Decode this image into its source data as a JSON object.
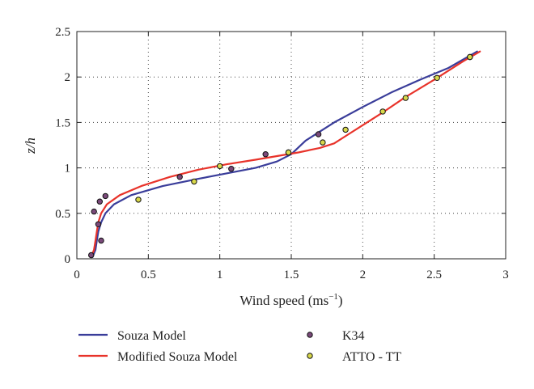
{
  "chart_data": {
    "type": "line",
    "title": "",
    "xlabel": "Wind speed (ms",
    "xlabel_sup": "−1",
    "xlabel_close": ")",
    "ylabel": "z/h",
    "xlim": [
      0,
      3
    ],
    "ylim": [
      0,
      2.5
    ],
    "x_ticks": [
      "0",
      "0.5",
      "1",
      "1.5",
      "2",
      "2.5",
      "3"
    ],
    "y_ticks": [
      "0",
      "0.5",
      "1",
      "1.5",
      "2",
      "2.5"
    ],
    "grid": true,
    "legend_position": "below",
    "series": [
      {
        "name": "Souza Model",
        "type": "line",
        "color": "#3a3d9a",
        "points": [
          [
            0.11,
            0.02
          ],
          [
            0.13,
            0.1
          ],
          [
            0.14,
            0.2
          ],
          [
            0.15,
            0.3
          ],
          [
            0.17,
            0.4
          ],
          [
            0.2,
            0.5
          ],
          [
            0.26,
            0.6
          ],
          [
            0.38,
            0.7
          ],
          [
            0.6,
            0.8
          ],
          [
            0.85,
            0.88
          ],
          [
            1.05,
            0.94
          ],
          [
            1.25,
            1.0
          ],
          [
            1.4,
            1.07
          ],
          [
            1.5,
            1.15
          ],
          [
            1.6,
            1.3
          ],
          [
            1.8,
            1.5
          ],
          [
            2.0,
            1.67
          ],
          [
            2.2,
            1.83
          ],
          [
            2.4,
            1.97
          ],
          [
            2.6,
            2.1
          ],
          [
            2.8,
            2.28
          ]
        ]
      },
      {
        "name": "Modified Souza Model",
        "type": "line",
        "color": "#e8332a",
        "points": [
          [
            0.1,
            0.02
          ],
          [
            0.12,
            0.1
          ],
          [
            0.13,
            0.2
          ],
          [
            0.14,
            0.3
          ],
          [
            0.15,
            0.4
          ],
          [
            0.17,
            0.5
          ],
          [
            0.21,
            0.6
          ],
          [
            0.3,
            0.7
          ],
          [
            0.45,
            0.8
          ],
          [
            0.65,
            0.9
          ],
          [
            0.85,
            0.98
          ],
          [
            1.05,
            1.04
          ],
          [
            1.25,
            1.09
          ],
          [
            1.4,
            1.13
          ],
          [
            1.55,
            1.17
          ],
          [
            1.7,
            1.22
          ],
          [
            1.8,
            1.27
          ],
          [
            1.9,
            1.37
          ],
          [
            2.0,
            1.47
          ],
          [
            2.15,
            1.62
          ],
          [
            2.3,
            1.78
          ],
          [
            2.5,
            1.97
          ],
          [
            2.7,
            2.17
          ],
          [
            2.82,
            2.28
          ]
        ]
      },
      {
        "name": "K34",
        "type": "scatter",
        "color": "#7a4a7a",
        "points": [
          [
            0.1,
            0.04
          ],
          [
            0.12,
            0.52
          ],
          [
            0.15,
            0.38
          ],
          [
            0.16,
            0.63
          ],
          [
            0.17,
            0.2
          ],
          [
            0.2,
            0.69
          ],
          [
            0.72,
            0.9
          ],
          [
            1.08,
            0.99
          ],
          [
            1.32,
            1.15
          ],
          [
            1.48,
            1.17
          ],
          [
            1.69,
            1.37
          ],
          [
            2.75,
            2.22
          ]
        ]
      },
      {
        "name": "ATTO - TT",
        "type": "scatter",
        "color": "#d8d84a",
        "points": [
          [
            0.43,
            0.65
          ],
          [
            0.82,
            0.85
          ],
          [
            1.0,
            1.02
          ],
          [
            1.48,
            1.17
          ],
          [
            1.72,
            1.28
          ],
          [
            1.88,
            1.42
          ],
          [
            2.14,
            1.62
          ],
          [
            2.3,
            1.77
          ],
          [
            2.52,
            1.99
          ],
          [
            2.75,
            2.22
          ]
        ]
      }
    ]
  }
}
